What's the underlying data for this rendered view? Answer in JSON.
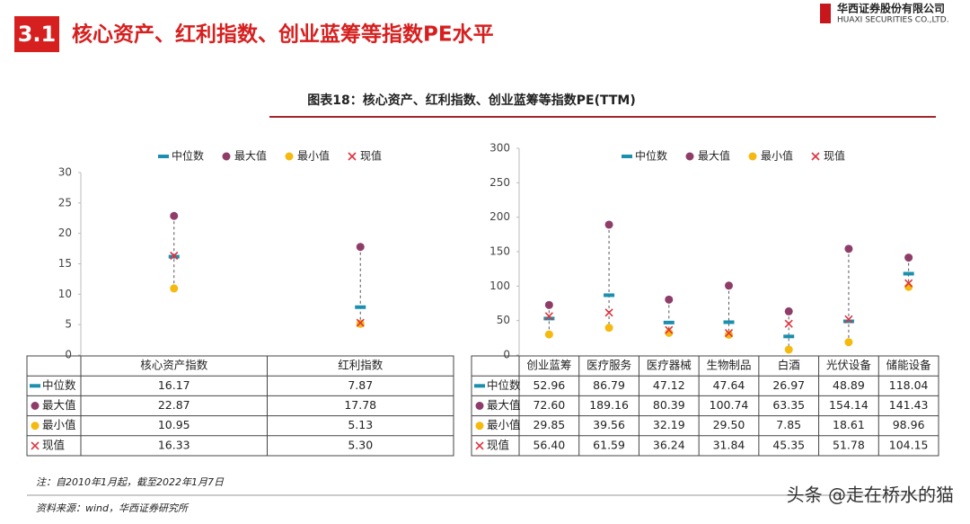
{
  "header": {
    "section": "3.1",
    "title": "核心资产、红利指数、创业蓝筹等指数PE水平",
    "company": "华西证券股份有限公司",
    "company_en": "HUAXI SECURITIES CO.,LTD."
  },
  "figure_title": "图表18：核心资产、红利指数、创业蓝筹等指数PE(TTM)",
  "chart_data": [
    {
      "type": "range-dot",
      "categories": [
        "核心资产指数",
        "红利指数"
      ],
      "series": [
        {
          "name": "中位数",
          "color": "#1b8fae",
          "marker": "dash",
          "values": [
            16.17,
            7.87
          ],
          "value_labels": [
            "16.17",
            "7.87"
          ]
        },
        {
          "name": "最大值",
          "color": "#8e3d68",
          "marker": "circle",
          "values": [
            22.87,
            17.78
          ],
          "value_labels": [
            "22.87",
            "17.78"
          ]
        },
        {
          "name": "最小值",
          "color": "#f5b90f",
          "marker": "circle",
          "values": [
            10.95,
            5.13
          ],
          "value_labels": [
            "10.95",
            "5.13"
          ]
        },
        {
          "name": "现值",
          "color": "#e0323c",
          "marker": "cross",
          "values": [
            16.33,
            5.3
          ],
          "value_labels": [
            "16.33",
            "5.30"
          ]
        }
      ],
      "ylim": [
        0,
        30
      ],
      "yticks": [
        0,
        5,
        10,
        15,
        20,
        25,
        30
      ]
    },
    {
      "type": "range-dot",
      "categories": [
        "创业蓝筹",
        "医疗服务",
        "医疗器械",
        "生物制品",
        "白酒",
        "光伏设备",
        "储能设备"
      ],
      "series": [
        {
          "name": "中位数",
          "color": "#1b8fae",
          "marker": "dash",
          "values": [
            52.96,
            86.79,
            47.12,
            47.64,
            26.97,
            48.89,
            118.04
          ],
          "value_labels": [
            "52.96",
            "86.79",
            "47.12",
            "47.64",
            "26.97",
            "48.89",
            "118.04"
          ]
        },
        {
          "name": "最大值",
          "color": "#8e3d68",
          "marker": "circle",
          "values": [
            72.6,
            189.16,
            80.39,
            100.74,
            63.35,
            154.14,
            141.43
          ],
          "value_labels": [
            "72.60",
            "189.16",
            "80.39",
            "100.74",
            "63.35",
            "154.14",
            "141.43"
          ]
        },
        {
          "name": "最小值",
          "color": "#f5b90f",
          "marker": "circle",
          "values": [
            29.85,
            39.56,
            32.19,
            29.5,
            7.85,
            18.61,
            98.96
          ],
          "value_labels": [
            "29.85",
            "39.56",
            "32.19",
            "29.50",
            "7.85",
            "18.61",
            "98.96"
          ]
        },
        {
          "name": "现值",
          "color": "#e0323c",
          "marker": "cross",
          "values": [
            56.4,
            61.59,
            36.24,
            31.84,
            45.35,
            51.78,
            104.15
          ],
          "value_labels": [
            "56.40",
            "61.59",
            "36.24",
            "31.84",
            "45.35",
            "51.78",
            "104.15"
          ]
        }
      ],
      "ylim": [
        0,
        300
      ],
      "yticks": [
        0,
        50,
        100,
        150,
        200,
        250,
        300
      ]
    }
  ],
  "note": "注：自2010年1月起，截至2022年1月7日",
  "source": "资料来源：wind，华西证券研究所",
  "watermark": "头条 @走在桥水的猫"
}
